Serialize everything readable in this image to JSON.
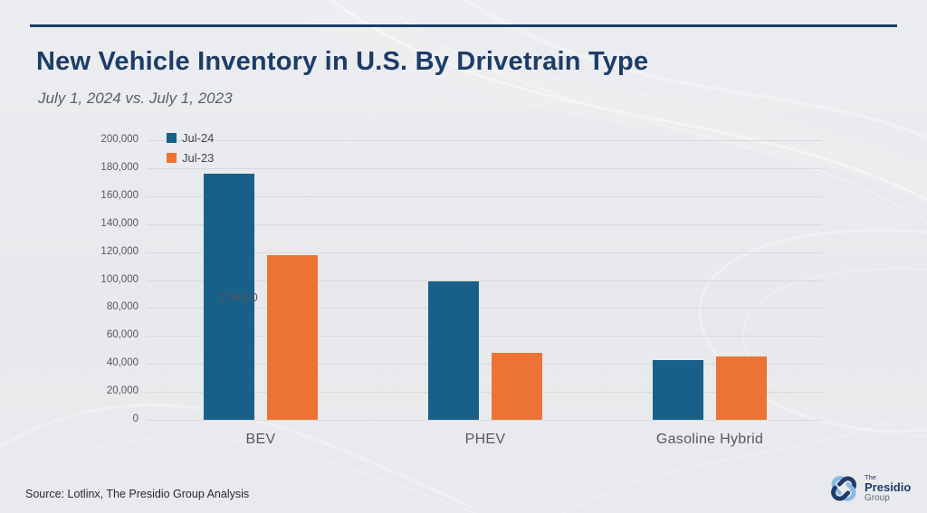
{
  "page": {
    "title": "New Vehicle Inventory in U.S. By Drivetrain Type",
    "subtitle": "July 1, 2024 vs. July 1, 2023"
  },
  "chart_data": {
    "type": "bar",
    "title": "New Vehicle Inventory in U.S. By Drivetrain Type",
    "subtitle": "July 1, 2024 vs. July 1, 2023",
    "categories": [
      "BEV",
      "PHEV",
      "Gasoline Hybrid"
    ],
    "series": [
      {
        "name": "Jul-24",
        "color": "#16608a",
        "values": [
          176000,
          99000,
          43000
        ]
      },
      {
        "name": "Jul-23",
        "color": "#ec7333",
        "values": [
          118000,
          48000,
          45000
        ]
      }
    ],
    "ylim": [
      0,
      200000
    ],
    "ytick_step": 20000,
    "ytick_labels": [
      "200,000",
      "180,000",
      "160,000",
      "140,000",
      "120,000",
      "100,000",
      "80,000",
      "60,000",
      "40,000",
      "20,000",
      "0"
    ],
    "grid": "horizontal",
    "legend_position": "top-left-inside",
    "bar_labels": [
      {
        "series": 0,
        "category": 0,
        "text": "176000"
      }
    ]
  },
  "footer": {
    "source": "Source: Lotlinx, The Presidio Group Analysis"
  },
  "logo": {
    "line1": "The",
    "line2": "Presidio",
    "line3": "Group",
    "navy": "#1d3c68",
    "light_blue": "#8db9e2"
  },
  "colors": {
    "accent_navy": "#1d3c68",
    "bar_teal": "#16608a",
    "bar_orange": "#ec7333",
    "background": "#e9eaed",
    "gridline": "#d6d8db"
  }
}
